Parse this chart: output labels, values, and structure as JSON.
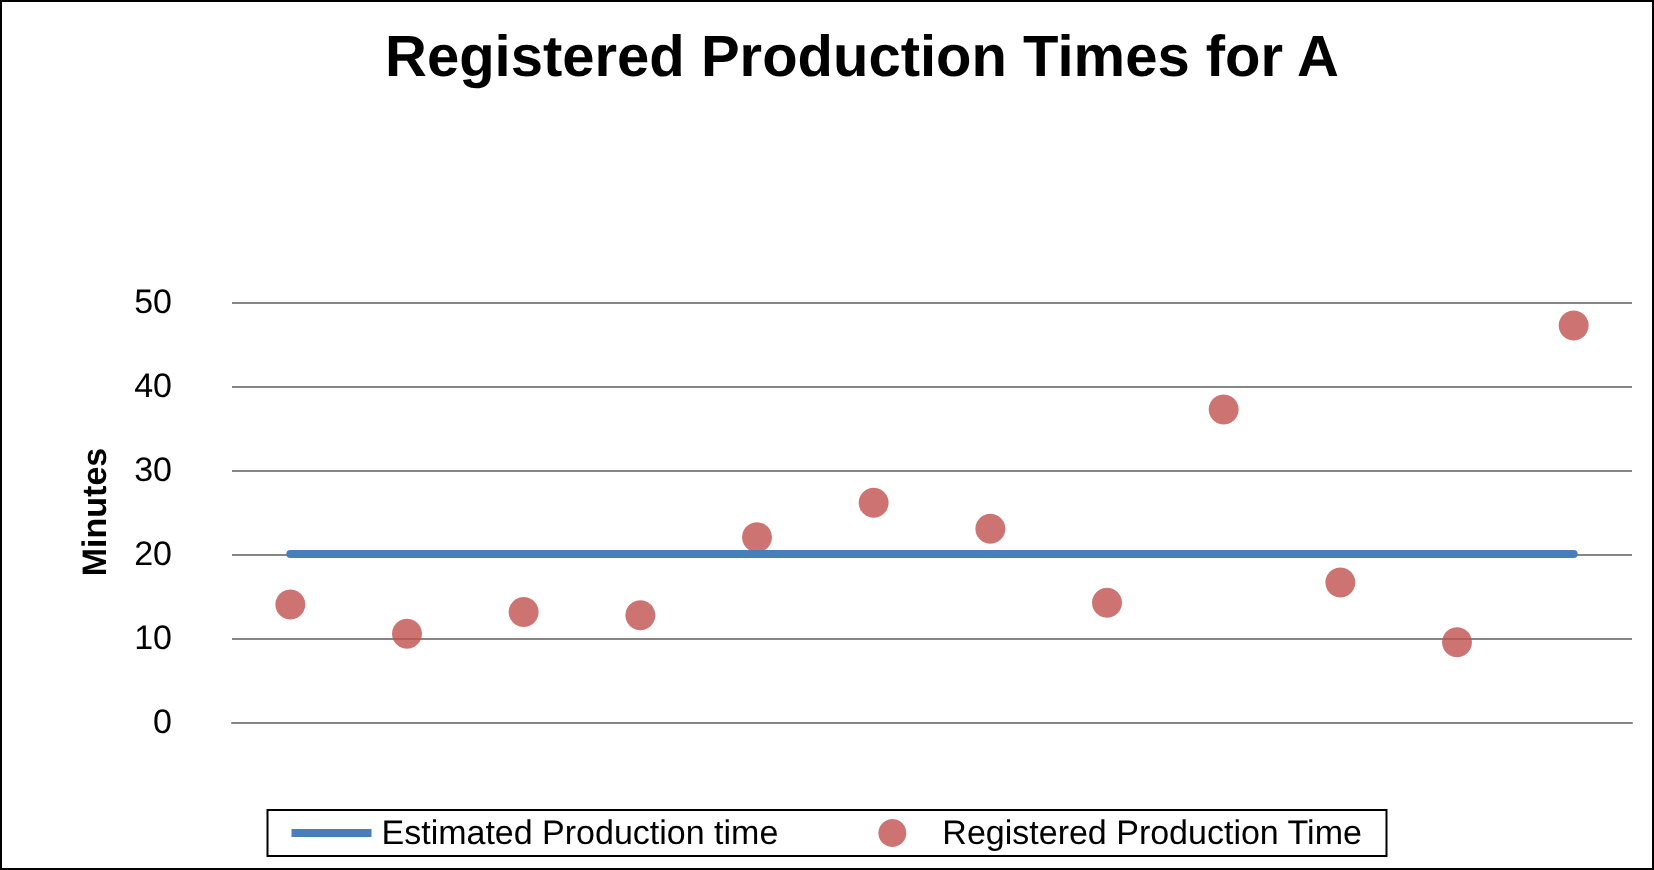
{
  "chart_data": {
    "type": "scatter",
    "title": "Registered Production Times for A",
    "ylabel": "Minutes",
    "categories": [
      null,
      null,
      null,
      null,
      null,
      null,
      null,
      null,
      null,
      null,
      null,
      null
    ],
    "series": [
      {
        "name": "Estimated Production time",
        "type": "line",
        "marker": "none",
        "color": "#4a7ebb",
        "values": [
          20,
          20,
          20,
          20,
          20,
          20,
          20,
          20,
          20,
          20,
          20,
          20
        ]
      },
      {
        "name": "Registered Production Time",
        "marker": "circle",
        "color": "#c0504d",
        "values": [
          14,
          10.5,
          13.1,
          12.7,
          22,
          26.1,
          23,
          14.2,
          37.2,
          16.6,
          9.5,
          47.2
        ]
      }
    ],
    "ylim": [
      0,
      50
    ],
    "yticks": [
      0,
      10,
      20,
      30,
      40,
      50
    ],
    "grid": "y",
    "legend": "bottom",
    "tick_labels": "y"
  }
}
